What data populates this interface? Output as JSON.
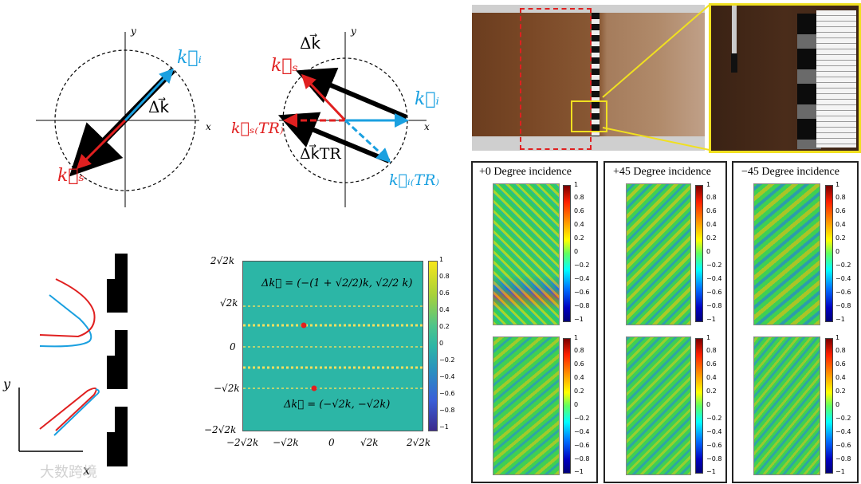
{
  "diagram1": {
    "x_label": "x",
    "y_label": "y",
    "ki": "k⃗ᵢ",
    "ks": "k⃗ₛ",
    "dk": "Δk⃗"
  },
  "diagram2": {
    "x_label": "x",
    "y_label": "y",
    "dk_top": "Δk⃗",
    "ks": "k⃗ₛ",
    "ki": "k⃗ᵢ",
    "ks_tr": "k⃗ₛ₍TR₎",
    "dk_tr": "Δk⃗TR",
    "ki_tr": "k⃗ᵢ₍TR₎"
  },
  "diagram3": {
    "y_label": "y",
    "x_label": "x"
  },
  "watermark": "大数跨境",
  "heatmap": {
    "eq_top": "Δk⃗ = (−(1 + √2/2)k, √2/2 k)",
    "eq_bottom": "Δk⃗ = (−√2k, −√2k)",
    "y_ticks": [
      "2√2k",
      "√2k",
      "0",
      "−√2k",
      "−2√2k"
    ],
    "x_ticks": [
      "−2√2k",
      "−√2k",
      "0",
      "√2k",
      "2√2k"
    ],
    "colorbar": [
      "1",
      "0.8",
      "0.6",
      "0.4",
      "0.2",
      "0",
      "−0.2",
      "−0.4",
      "−0.6",
      "−0.8",
      "−1"
    ],
    "colors": {
      "background": "#2cb6a6",
      "dot": "#e02020"
    }
  },
  "panels": [
    {
      "title": "+0 Degree incidence"
    },
    {
      "title": "+45 Degree incidence"
    },
    {
      "title": "−45 Degree incidence"
    }
  ],
  "field_colorbar": [
    "1",
    "0.8",
    "0.6",
    "0.4",
    "0.2",
    "0",
    "−0.2",
    "−0.4",
    "−0.6",
    "−0.8",
    "−1"
  ]
}
